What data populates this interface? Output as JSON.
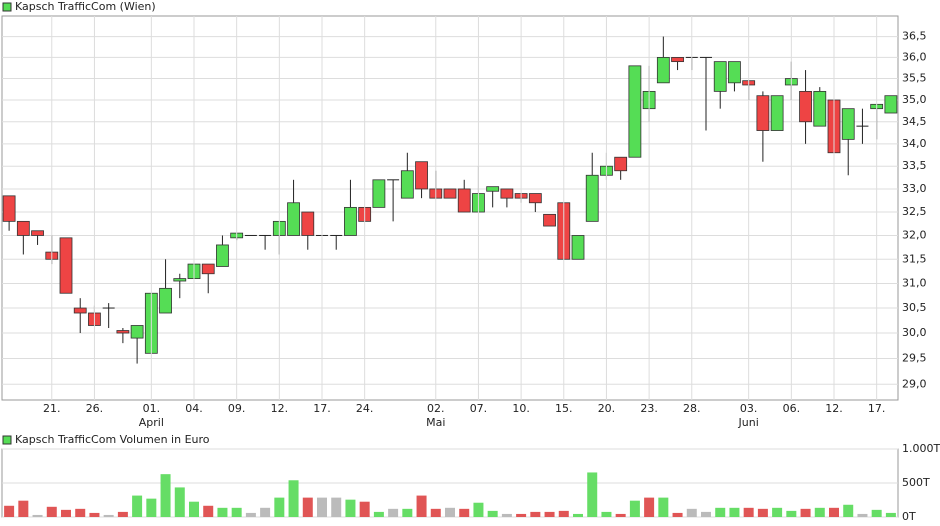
{
  "chart_data": [
    {
      "type": "candlestick",
      "title": "Kapsch TrafficCom (Wien)",
      "log": true,
      "grid": true,
      "up_color": "#55dd55",
      "down_color": "#ee4444",
      "categories": [
        null,
        null,
        null,
        "21.",
        null,
        null,
        "26.",
        null,
        null,
        null,
        "01.",
        null,
        null,
        "04.",
        null,
        null,
        "09.",
        null,
        null,
        "12.",
        null,
        null,
        "17.",
        null,
        null,
        "24.",
        null,
        null,
        null,
        null,
        "02.",
        null,
        null,
        "07.",
        null,
        null,
        "10.",
        null,
        null,
        "15.",
        null,
        null,
        "20.",
        null,
        null,
        "23.",
        null,
        null,
        "28.",
        null,
        null,
        null,
        "03.",
        null,
        null,
        "06.",
        null,
        null,
        "12.",
        null,
        null,
        "17.",
        null
      ],
      "months": [
        null,
        null,
        null,
        null,
        null,
        null,
        null,
        null,
        null,
        null,
        "April",
        null,
        null,
        null,
        null,
        null,
        null,
        null,
        null,
        null,
        null,
        null,
        null,
        null,
        null,
        null,
        null,
        null,
        null,
        null,
        "Mai",
        null,
        null,
        null,
        null,
        null,
        null,
        null,
        null,
        null,
        null,
        null,
        null,
        null,
        null,
        null,
        null,
        null,
        null,
        null,
        null,
        null,
        "Juni",
        null,
        null,
        null,
        null,
        null,
        null,
        null,
        null,
        null,
        null
      ],
      "open": [
        32.85,
        32.3,
        32.1,
        31.65,
        31.95,
        30.5,
        30.4,
        30.5,
        30.05,
        29.9,
        29.6,
        30.4,
        31.05,
        31.1,
        31.4,
        31.35,
        31.95,
        32.0,
        32.0,
        32.0,
        32.0,
        32.5,
        32.0,
        32.0,
        32.0,
        32.6,
        32.6,
        33.2,
        32.8,
        33.6,
        33.0,
        33.0,
        33.0,
        32.5,
        32.95,
        33.0,
        32.9,
        32.9,
        32.45,
        32.7,
        31.5,
        32.3,
        33.3,
        33.7,
        33.7,
        34.8,
        35.4,
        36.0,
        36.0,
        36.0,
        35.2,
        35.4,
        35.45,
        35.1,
        34.3,
        35.35,
        35.2,
        34.4,
        35.0,
        34.1,
        34.4,
        34.8,
        34.7
      ],
      "high": [
        32.85,
        32.3,
        32.1,
        32.0,
        31.95,
        30.7,
        30.55,
        30.6,
        30.1,
        30.15,
        30.8,
        31.5,
        31.2,
        31.5,
        31.4,
        32.0,
        32.05,
        32.0,
        32.0,
        32.3,
        33.2,
        32.5,
        32.0,
        32.0,
        33.2,
        32.6,
        33.2,
        33.2,
        33.8,
        33.6,
        33.4,
        33.0,
        33.2,
        33.5,
        33.05,
        33.0,
        32.9,
        32.9,
        32.45,
        32.7,
        32.0,
        33.8,
        33.8,
        33.7,
        35.8,
        35.8,
        36.5,
        36.0,
        36.0,
        36.0,
        35.9,
        35.9,
        35.45,
        35.2,
        35.1,
        35.9,
        35.7,
        35.3,
        35.4,
        34.8,
        34.8,
        34.9,
        35.1
      ],
      "low": [
        32.1,
        31.6,
        31.8,
        31.4,
        30.8,
        30.0,
        30.15,
        30.1,
        29.8,
        29.4,
        29.6,
        30.4,
        30.7,
        31.1,
        30.8,
        31.35,
        31.9,
        32.0,
        31.7,
        31.6,
        32.0,
        31.7,
        31.7,
        31.7,
        32.0,
        32.3,
        32.6,
        32.3,
        32.8,
        32.8,
        32.8,
        32.8,
        32.5,
        32.5,
        32.6,
        32.6,
        32.7,
        32.5,
        32.2,
        31.5,
        31.5,
        32.3,
        33.2,
        33.2,
        33.7,
        34.5,
        35.4,
        35.7,
        35.7,
        34.3,
        34.8,
        35.2,
        35.0,
        33.6,
        34.3,
        35.0,
        34.0,
        34.4,
        33.5,
        33.3,
        34.0,
        34.1,
        34.7
      ],
      "close": [
        32.3,
        32.0,
        32.0,
        31.5,
        30.8,
        30.4,
        30.15,
        30.5,
        30.0,
        30.15,
        30.8,
        30.9,
        31.1,
        31.4,
        31.2,
        31.8,
        32.05,
        32.0,
        32.0,
        32.3,
        32.7,
        32.0,
        32.0,
        32.0,
        32.6,
        32.3,
        33.2,
        33.2,
        33.4,
        33.0,
        32.8,
        32.8,
        32.5,
        32.9,
        33.05,
        32.8,
        32.8,
        32.7,
        32.2,
        31.5,
        32.0,
        33.3,
        33.5,
        33.4,
        35.8,
        35.2,
        36.0,
        35.9,
        36.0,
        36.0,
        35.9,
        35.9,
        35.35,
        34.3,
        35.1,
        35.5,
        34.5,
        35.2,
        33.8,
        34.8,
        34.4,
        34.9,
        35.1
      ],
      "ylim": [
        28.7,
        37.0
      ],
      "yticks": [
        {
          "value": 29,
          "label": "29,0"
        },
        {
          "value": 29.5,
          "label": "29,5"
        },
        {
          "value": 30,
          "label": "30,0"
        },
        {
          "value": 30.5,
          "label": "30,5"
        },
        {
          "value": 31,
          "label": "31,0"
        },
        {
          "value": 31.5,
          "label": "31,5"
        },
        {
          "value": 32,
          "label": "32,0"
        },
        {
          "value": 32.5,
          "label": "32,5"
        },
        {
          "value": 33,
          "label": "33,0"
        },
        {
          "value": 33.5,
          "label": "33,5"
        },
        {
          "value": 34,
          "label": "34,0"
        },
        {
          "value": 34.5,
          "label": "34,5"
        },
        {
          "value": 35,
          "label": "35,0"
        },
        {
          "value": 35.5,
          "label": "35,5"
        },
        {
          "value": 36,
          "label": "36,0"
        },
        {
          "value": 36.5,
          "label": "36,5"
        }
      ]
    },
    {
      "type": "bar",
      "title": "Kapsch TrafficCom Volumen in Euro",
      "grid": true,
      "values": [
        165000,
        240000,
        30000,
        150000,
        105000,
        120000,
        60000,
        30000,
        75000,
        315000,
        270000,
        630000,
        435000,
        225000,
        165000,
        135000,
        135000,
        60000,
        135000,
        285000,
        540000,
        285000,
        285000,
        285000,
        255000,
        225000,
        75000,
        120000,
        120000,
        315000,
        120000,
        135000,
        120000,
        210000,
        90000,
        45000,
        45000,
        75000,
        75000,
        90000,
        45000,
        655000,
        75000,
        45000,
        240000,
        285000,
        285000,
        60000,
        120000,
        75000,
        135000,
        135000,
        135000,
        120000,
        135000,
        90000,
        120000,
        135000,
        135000,
        180000,
        45000,
        105000,
        60000
      ],
      "colors": [
        "#e05555",
        "#e05555",
        "#bbbbbb",
        "#e05555",
        "#e05555",
        "#e05555",
        "#e05555",
        "#bbbbbb",
        "#e05555",
        "#66dd66",
        "#66dd66",
        "#66dd66",
        "#66dd66",
        "#66dd66",
        "#e05555",
        "#66dd66",
        "#66dd66",
        "#bbbbbb",
        "#bbbbbb",
        "#66dd66",
        "#66dd66",
        "#e05555",
        "#bbbbbb",
        "#bbbbbb",
        "#66dd66",
        "#e05555",
        "#66dd66",
        "#bbbbbb",
        "#66dd66",
        "#e05555",
        "#e05555",
        "#bbbbbb",
        "#e05555",
        "#66dd66",
        "#66dd66",
        "#bbbbbb",
        "#e05555",
        "#e05555",
        "#e05555",
        "#e05555",
        "#66dd66",
        "#66dd66",
        "#66dd66",
        "#e05555",
        "#66dd66",
        "#e05555",
        "#66dd66",
        "#e05555",
        "#bbbbbb",
        "#bbbbbb",
        "#66dd66",
        "#66dd66",
        "#e05555",
        "#e05555",
        "#66dd66",
        "#66dd66",
        "#e05555",
        "#66dd66",
        "#e05555",
        "#66dd66",
        "#bbbbbb",
        "#66dd66",
        "#66dd66"
      ],
      "ylim": [
        0,
        1000000
      ],
      "yticks": [
        {
          "value": 0,
          "label": "0T"
        },
        {
          "value": 500000,
          "label": "500T"
        },
        {
          "value": 1000000,
          "label": "1.000T"
        }
      ]
    }
  ]
}
